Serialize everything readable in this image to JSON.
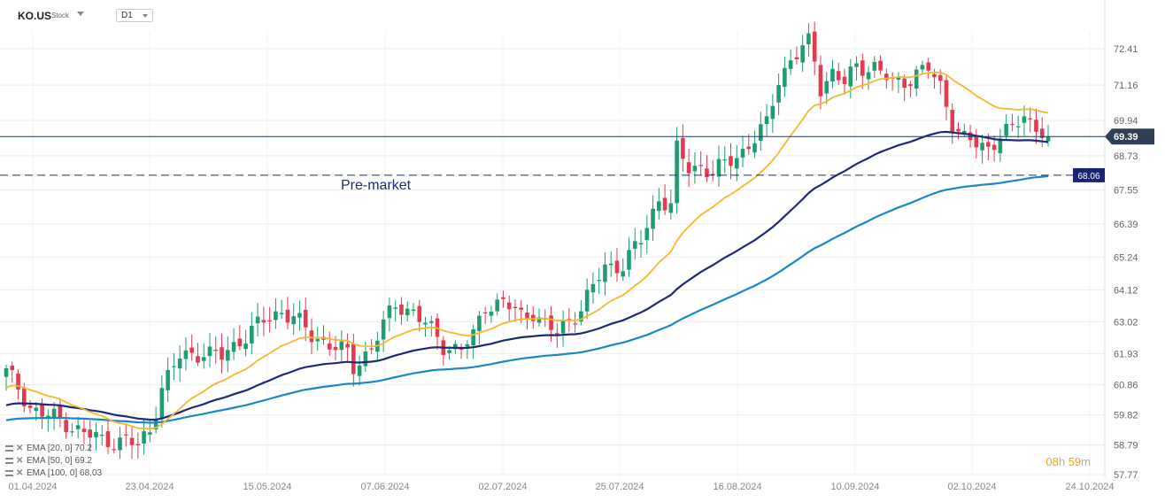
{
  "header": {
    "symbol": "KO.US",
    "type": "Stock",
    "timeframe": "D1"
  },
  "countdown": {
    "hours": "08",
    "hours_unit": "h",
    "minutes": "59",
    "minutes_unit": "m"
  },
  "indicators": [
    {
      "label": "EMA",
      "params": "[20, 0]",
      "value": "70.2"
    },
    {
      "label": "EMA",
      "params": "[50, 0]",
      "value": "69.2"
    },
    {
      "label": "EMA",
      "params": "[100, 0]",
      "value": "68.03"
    }
  ],
  "colors": {
    "up": "#1f9d6f",
    "down": "#e23a4f",
    "ema20": "#f5b82e",
    "ema50": "#1e2a78",
    "ema100": "#1b87c9",
    "price_line": "#1f3a5f",
    "premarket_line": "#1e2a78",
    "premarket_tag": "#1a2570",
    "price_tag": "#2f3f55"
  },
  "chart_data": {
    "type": "candlestick",
    "ylim": [
      57.77,
      73.2
    ],
    "y_ticks": [
      "72.41",
      "71.16",
      "69.94",
      "68.73",
      "67.55",
      "66.39",
      "65.24",
      "64.12",
      "63.02",
      "61.93",
      "60.86",
      "59.82",
      "58.79",
      "57.77"
    ],
    "x_ticks": [
      "01.04.2024",
      "23.04.2024",
      "15.05.2024",
      "07.06.2024",
      "02.07.2024",
      "25.07.2024",
      "16.08.2024",
      "10.09.2024",
      "02.10.2024",
      "24.10.2024"
    ],
    "current_price": {
      "value": 69.39,
      "label": "69.39"
    },
    "premarket": {
      "value": 68.06,
      "label": "68.06",
      "text": "Pre-market"
    },
    "ema20_end": 70.2,
    "ema50_end": 69.2,
    "ema100_end": 68.03
  }
}
